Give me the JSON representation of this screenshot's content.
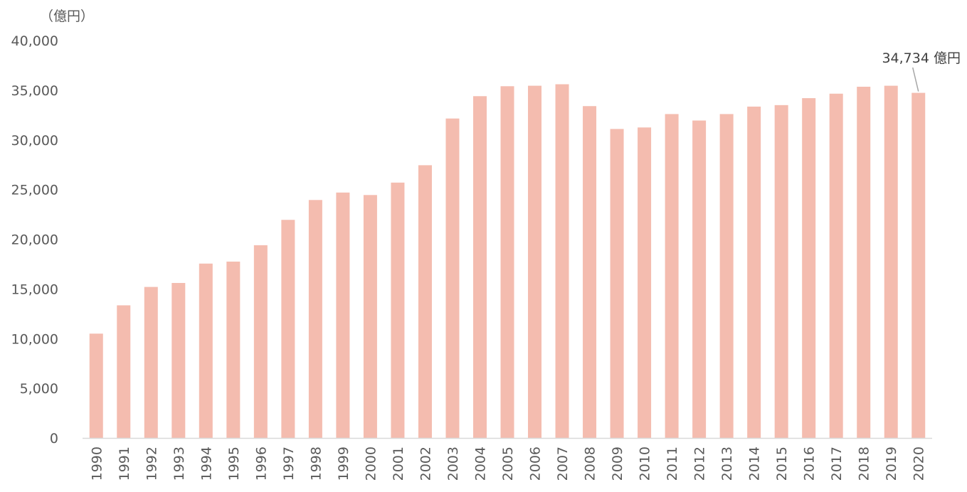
{
  "chart_data": {
    "type": "bar",
    "unit_label": "（億円）",
    "categories": [
      "1990",
      "1991",
      "1992",
      "1993",
      "1994",
      "1995",
      "1996",
      "1997",
      "1998",
      "1999",
      "2000",
      "2001",
      "2002",
      "2003",
      "2004",
      "2005",
      "2006",
      "2007",
      "2008",
      "2009",
      "2010",
      "2011",
      "2012",
      "2013",
      "2014",
      "2015",
      "2016",
      "2017",
      "2018",
      "2019",
      "2020"
    ],
    "values": [
      10500,
      13350,
      15200,
      15600,
      17550,
      17750,
      19400,
      21950,
      23950,
      24700,
      24450,
      25700,
      27450,
      32150,
      34400,
      35400,
      35450,
      35600,
      33400,
      31100,
      31250,
      32600,
      31950,
      32600,
      33350,
      33500,
      34200,
      34650,
      35350,
      35450,
      34734
    ],
    "ylim": [
      0,
      40000
    ],
    "yticks": [
      "0",
      "5,000",
      "10,000",
      "15,000",
      "20,000",
      "25,000",
      "30,000",
      "35,000",
      "40,000"
    ],
    "ytick_values": [
      0,
      5000,
      10000,
      15000,
      20000,
      25000,
      30000,
      35000,
      40000
    ],
    "bar_color": "#F4BCAF",
    "axis_color": "#D9D9D9",
    "grid": false,
    "annotation": {
      "text": "34,734 億円",
      "category": "2020",
      "value": 34734
    }
  }
}
